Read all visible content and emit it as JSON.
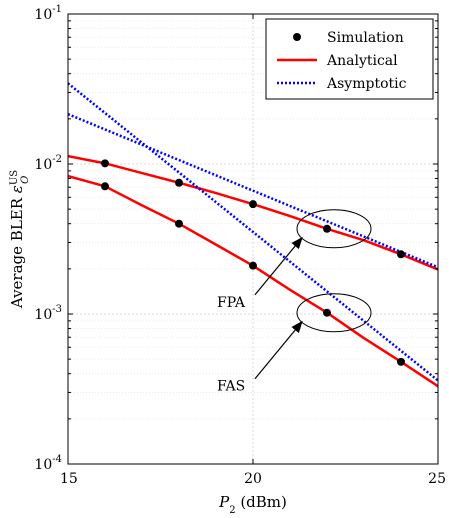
{
  "chart_data": {
    "type": "line",
    "xlabel_var": "P",
    "xlabel_sub": "2",
    "xlabel_unit": " (dBm)",
    "ylabel_text": "Average BLER ",
    "ylabel_var": "ε",
    "ylabel_sub": "O",
    "ylabel_sup": "US",
    "xlim": [
      15,
      25
    ],
    "ylim": [
      0.0001,
      0.1
    ],
    "yscale": "log",
    "grid": true,
    "legend_position": "top-right",
    "x_ticks": [
      {
        "value": 15,
        "label": "15"
      },
      {
        "value": 20,
        "label": "20"
      },
      {
        "value": 25,
        "label": "25"
      }
    ],
    "y_ticks": [
      {
        "value": 0.0001,
        "base": "10",
        "exp": "-4"
      },
      {
        "value": 0.001,
        "base": "10",
        "exp": "-3"
      },
      {
        "value": 0.01,
        "base": "10",
        "exp": "-2"
      },
      {
        "value": 0.1,
        "base": "10",
        "exp": "-1"
      }
    ],
    "series": [
      {
        "name": "Simulation",
        "style": "markers",
        "color": "#000000",
        "groups": [
          {
            "x": [
              16,
              18,
              20,
              22,
              24
            ],
            "y": [
              0.0101,
              0.0075,
              0.0054,
              0.0037,
              0.0025
            ]
          },
          {
            "x": [
              16,
              18,
              20,
              22,
              24
            ],
            "y": [
              0.0071,
              0.004,
              0.0021,
              0.00102,
              0.00048
            ]
          }
        ]
      },
      {
        "name": "Analytical",
        "style": "solid",
        "color": "#ff0000",
        "groups": [
          {
            "x": [
              15,
              16,
              17,
              18,
              19,
              20,
              21,
              22,
              23,
              24,
              25
            ],
            "y": [
              0.0113,
              0.0101,
              0.0087,
              0.0075,
              0.0064,
              0.0054,
              0.0045,
              0.0037,
              0.0031,
              0.0025,
              0.00198
            ]
          },
          {
            "x": [
              15,
              16,
              17,
              18,
              19,
              20,
              21,
              22,
              23,
              24,
              25
            ],
            "y": [
              0.0083,
              0.0071,
              0.0053,
              0.004,
              0.0029,
              0.0021,
              0.00145,
              0.00102,
              0.00069,
              0.00048,
              0.00033
            ]
          }
        ]
      },
      {
        "name": "Asymptotic",
        "style": "dotted",
        "color": "#0000ff",
        "groups": [
          {
            "x": [
              15,
              25
            ],
            "y": [
              0.0215,
              0.00205
            ]
          },
          {
            "x": [
              15,
              25
            ],
            "y": [
              0.0345,
              0.00036
            ]
          }
        ]
      }
    ],
    "annotations": [
      {
        "label": "FPA",
        "target_x": 22.0,
        "target_y": 0.0037
      },
      {
        "label": "FAS",
        "target_x": 22.0,
        "target_y": 0.00102
      }
    ]
  }
}
